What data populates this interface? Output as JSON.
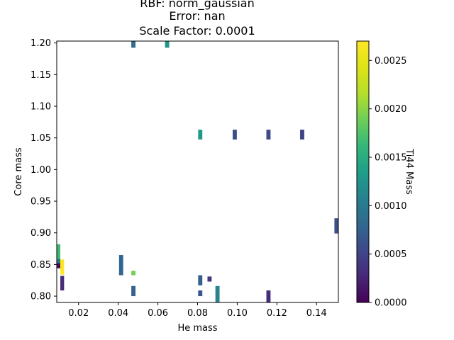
{
  "chart_data": {
    "type": "heatmap",
    "title_lines": [
      "RBF: norm_gaussian",
      "Error: nan",
      "Scale Factor: 0.0001"
    ],
    "xlabel": "He mass",
    "ylabel": "Core mass",
    "colorbar_label": "Ti44 Mass",
    "xlim": [
      0.009,
      0.151
    ],
    "ylim": [
      0.79,
      1.203
    ],
    "clim": [
      0.0,
      0.0027
    ],
    "colormap": "viridis",
    "grid": false,
    "xticks": [
      0.02,
      0.04,
      0.06,
      0.08,
      0.1,
      0.12,
      0.14
    ],
    "xtick_labels": [
      "0.02",
      "0.04",
      "0.06",
      "0.08",
      "0.10",
      "0.12",
      "0.14"
    ],
    "yticks": [
      0.8,
      0.85,
      0.9,
      0.95,
      1.0,
      1.05,
      1.1,
      1.15,
      1.2
    ],
    "ytick_labels": [
      "0.80",
      "0.85",
      "0.90",
      "0.95",
      "1.00",
      "1.05",
      "1.10",
      "1.15",
      "1.20"
    ],
    "cticks": [
      0.0,
      0.0005,
      0.001,
      0.0015,
      0.002,
      0.0025
    ],
    "ctick_labels": [
      "0.0000",
      "0.0005",
      "0.0010",
      "0.0015",
      "0.0020",
      "0.0025"
    ],
    "cells": [
      {
        "x0": 0.0466,
        "x1": 0.0487,
        "y0": 1.1925,
        "y1": 1.2035,
        "value": 0.00085
      },
      {
        "x0": 0.0636,
        "x1": 0.0657,
        "y0": 1.1925,
        "y1": 1.2035,
        "value": 0.00125
      },
      {
        "x0": 0.0803,
        "x1": 0.0824,
        "y0": 1.0475,
        "y1": 1.063,
        "value": 0.0013
      },
      {
        "x0": 0.0977,
        "x1": 0.0998,
        "y0": 1.0475,
        "y1": 1.063,
        "value": 0.0006
      },
      {
        "x0": 0.1147,
        "x1": 0.1168,
        "y0": 1.0475,
        "y1": 1.063,
        "value": 0.00055
      },
      {
        "x0": 0.1317,
        "x1": 0.1338,
        "y0": 1.0475,
        "y1": 1.063,
        "value": 0.0005
      },
      {
        "x0": 0.149,
        "x1": 0.1511,
        "y0": 0.899,
        "y1": 0.923,
        "value": 0.0006
      },
      {
        "x0": 0.009,
        "x1": 0.0108,
        "y0": 0.859,
        "y1": 0.882,
        "value": 0.00165
      },
      {
        "x0": 0.009,
        "x1": 0.0108,
        "y0": 0.852,
        "y1": 0.859,
        "value": 0.001
      },
      {
        "x0": 0.009,
        "x1": 0.0108,
        "y0": 0.844,
        "y1": 0.852,
        "value": 5e-05
      },
      {
        "x0": 0.0108,
        "x1": 0.0127,
        "y0": 0.834,
        "y1": 0.858,
        "value": 0.0027
      },
      {
        "x0": 0.0108,
        "x1": 0.0127,
        "y0": 0.809,
        "y1": 0.832,
        "value": 0.0003
      },
      {
        "x0": 0.0404,
        "x1": 0.0425,
        "y0": 0.833,
        "y1": 0.865,
        "value": 0.0008
      },
      {
        "x0": 0.0466,
        "x1": 0.0487,
        "y0": 0.833,
        "y1": 0.84,
        "value": 0.0019
      },
      {
        "x0": 0.0466,
        "x1": 0.0487,
        "y0": 0.8,
        "y1": 0.816,
        "value": 0.00075
      },
      {
        "x0": 0.0803,
        "x1": 0.0824,
        "y0": 0.817,
        "y1": 0.833,
        "value": 0.00075
      },
      {
        "x0": 0.085,
        "x1": 0.0871,
        "y0": 0.823,
        "y1": 0.831,
        "value": 0.0004
      },
      {
        "x0": 0.0803,
        "x1": 0.0824,
        "y0": 0.8,
        "y1": 0.809,
        "value": 0.00065
      },
      {
        "x0": 0.089,
        "x1": 0.0911,
        "y0": 0.7905,
        "y1": 0.816,
        "value": 0.0011
      },
      {
        "x0": 0.1147,
        "x1": 0.1168,
        "y0": 0.7905,
        "y1": 0.809,
        "value": 0.0003
      }
    ]
  }
}
